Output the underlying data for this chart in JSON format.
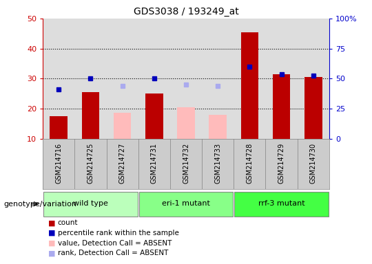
{
  "title": "GDS3038 / 193249_at",
  "samples": [
    "GSM214716",
    "GSM214725",
    "GSM214727",
    "GSM214731",
    "GSM214732",
    "GSM214733",
    "GSM214728",
    "GSM214729",
    "GSM214730"
  ],
  "count_values": [
    17.5,
    25.5,
    null,
    25.0,
    null,
    null,
    45.5,
    31.5,
    30.5
  ],
  "count_absent_values": [
    null,
    null,
    18.5,
    null,
    20.5,
    18.0,
    null,
    null,
    null
  ],
  "rank_values": [
    26.5,
    30.0,
    null,
    30.0,
    null,
    null,
    34.0,
    31.5,
    31.0
  ],
  "rank_absent_values": [
    null,
    null,
    27.5,
    null,
    28.0,
    27.5,
    null,
    null,
    null
  ],
  "groups": [
    {
      "label": "wild type",
      "indices": [
        0,
        1,
        2
      ],
      "color": "#bbffbb"
    },
    {
      "label": "eri-1 mutant",
      "indices": [
        3,
        4,
        5
      ],
      "color": "#88ff88"
    },
    {
      "label": "rrf-3 mutant",
      "indices": [
        6,
        7,
        8
      ],
      "color": "#44ff44"
    }
  ],
  "ylim_left": [
    10,
    50
  ],
  "ylim_right": [
    0,
    100
  ],
  "yticks_left": [
    10,
    20,
    30,
    40,
    50
  ],
  "yticks_right": [
    0,
    25,
    50,
    75,
    100
  ],
  "yticklabels_right": [
    "0",
    "25",
    "50",
    "75",
    "100%"
  ],
  "left_axis_color": "#cc0000",
  "right_axis_color": "#0000cc",
  "bar_color_count": "#bb0000",
  "bar_color_absent": "#ffbbbb",
  "dot_color_rank": "#0000bb",
  "dot_color_rank_absent": "#aaaaee",
  "grid_color": "black",
  "plot_bg_color": "#dddddd",
  "sample_bg_color": "#cccccc",
  "genotype_label": "genotype/variation",
  "legend_items": [
    {
      "label": "count",
      "color": "#bb0000"
    },
    {
      "label": "percentile rank within the sample",
      "color": "#0000bb"
    },
    {
      "label": "value, Detection Call = ABSENT",
      "color": "#ffbbbb"
    },
    {
      "label": "rank, Detection Call = ABSENT",
      "color": "#aaaaee"
    }
  ]
}
